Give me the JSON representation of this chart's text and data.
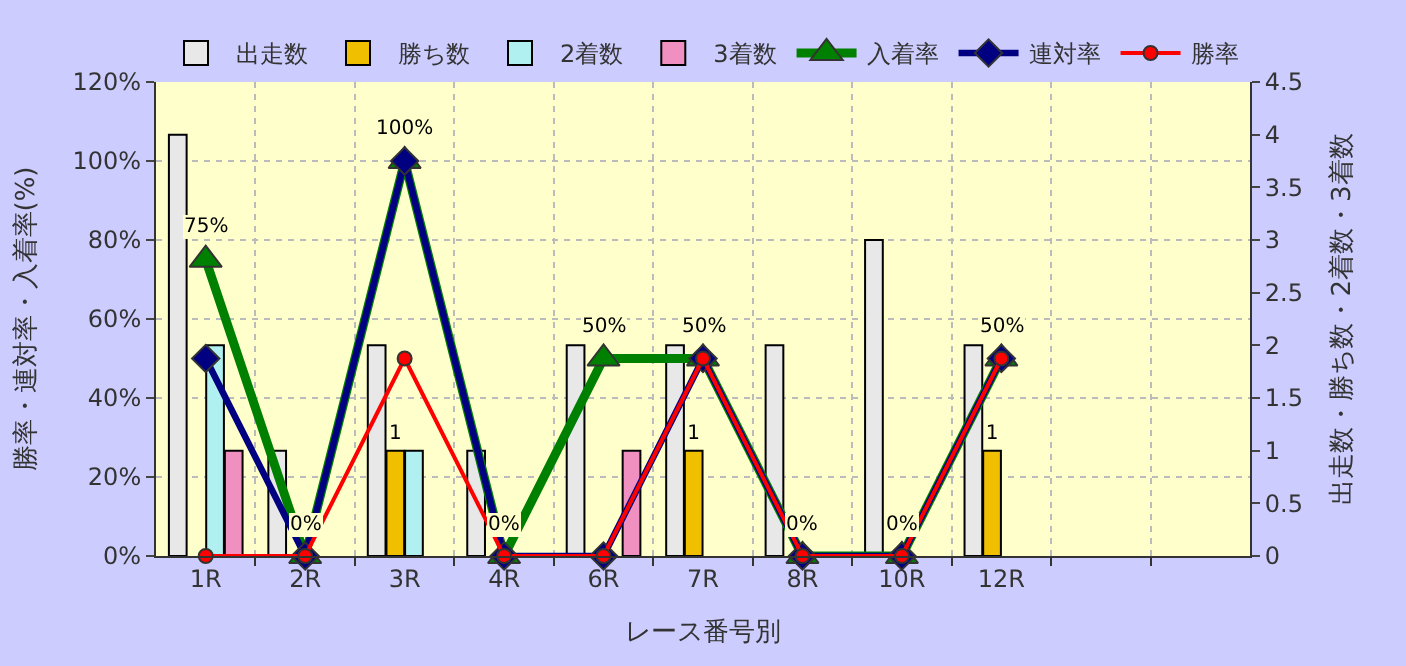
{
  "chart_data": {
    "type": "bar",
    "xlabel": "レース番号別",
    "ylabel": "勝率・連対率・入着率(%)",
    "y2label": "出走数・勝ち数・2着数・3着数",
    "categories": [
      "1R",
      "2R",
      "3R",
      "4R",
      "6R",
      "7R",
      "8R",
      "10R",
      "12R",
      null,
      null
    ],
    "series": [
      {
        "name": "出走数",
        "axis": "y2",
        "color": "#e8e8e8",
        "values": [
          4,
          1,
          2,
          1,
          2,
          2,
          2,
          3,
          2,
          null,
          null
        ]
      },
      {
        "name": "勝ち数",
        "axis": "y2",
        "color": "#f0c000",
        "values": [
          null,
          null,
          1,
          null,
          null,
          1,
          null,
          null,
          1,
          null,
          null
        ],
        "value_labels": [
          null,
          null,
          "1",
          null,
          null,
          "1",
          null,
          null,
          "1",
          null,
          null
        ]
      },
      {
        "name": "2着数",
        "axis": "y2",
        "color": "#b0f0f0",
        "values": [
          2,
          null,
          1,
          null,
          null,
          null,
          null,
          null,
          null,
          null,
          null
        ]
      },
      {
        "name": "3着数",
        "axis": "y2",
        "color": "#f090c0",
        "values": [
          1,
          null,
          null,
          null,
          1,
          null,
          null,
          null,
          null,
          null,
          null
        ]
      },
      {
        "name": "入着率",
        "type": "line",
        "axis": "y",
        "color": "#008000",
        "marker": "triangle",
        "values": [
          75,
          0,
          100,
          0,
          50,
          50,
          0,
          0,
          50,
          null,
          null
        ],
        "value_labels": [
          "75%",
          "0%",
          "100%",
          "0%",
          "50%",
          "50%",
          "0%",
          "0%",
          "50%",
          null,
          null
        ]
      },
      {
        "name": "連対率",
        "type": "line",
        "axis": "y",
        "color": "#000080",
        "marker": "diamond",
        "values": [
          50,
          0,
          100,
          0,
          0,
          50,
          0,
          0,
          50,
          null,
          null
        ]
      },
      {
        "name": "勝率",
        "type": "line",
        "axis": "y",
        "color": "#ff0000",
        "marker": "circle",
        "values": [
          0,
          0,
          50,
          0,
          0,
          50,
          0,
          0,
          50,
          null,
          null
        ]
      }
    ],
    "ylim": [
      0,
      120
    ],
    "yticks": [
      {
        "value": 0,
        "label": "0%"
      },
      {
        "value": 20,
        "label": "20%"
      },
      {
        "value": 40,
        "label": "40%"
      },
      {
        "value": 60,
        "label": "60%"
      },
      {
        "value": 80,
        "label": "80%"
      },
      {
        "value": 100,
        "label": "100%"
      },
      {
        "value": 120,
        "label": "120%"
      }
    ],
    "y2lim": [
      0,
      4.5
    ],
    "y2ticks": [
      0,
      0.5,
      1,
      1.5,
      2,
      2.5,
      3,
      3.5,
      4,
      4.5
    ],
    "grid": true,
    "legend": "top"
  }
}
